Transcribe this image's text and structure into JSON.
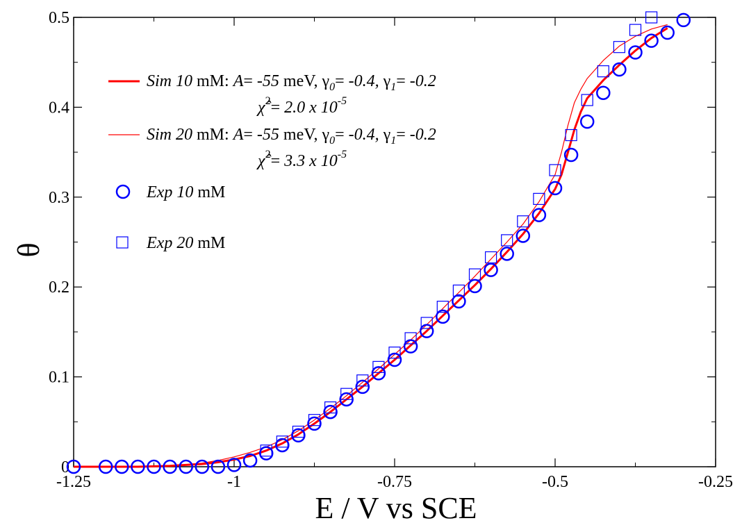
{
  "chart_data": {
    "type": "line",
    "xlabel": "E / V vs SCE",
    "ylabel": "θ",
    "xlim": [
      -1.25,
      -0.25
    ],
    "ylim": [
      0,
      0.5
    ],
    "grid": false,
    "legend_position": "top-left",
    "x_ticks": [
      {
        "value": -1.25,
        "label": "-1.25"
      },
      {
        "value": -1.0,
        "label": "-1"
      },
      {
        "value": -0.75,
        "label": "-0.75"
      },
      {
        "value": -0.5,
        "label": "-0.5"
      },
      {
        "value": -0.25,
        "label": "-0.25"
      }
    ],
    "y_ticks": [
      {
        "value": 0,
        "label": "0"
      },
      {
        "value": 0.1,
        "label": "0.1"
      },
      {
        "value": 0.2,
        "label": "0.2"
      },
      {
        "value": 0.3,
        "label": "0.3"
      },
      {
        "value": 0.4,
        "label": "0.4"
      },
      {
        "value": 0.5,
        "label": "0.5"
      }
    ],
    "series": [
      {
        "legend": {
          "conc": "10",
          "unit": "mM:",
          "chi": "2.0 x 10",
          "chi_exp": "-5"
        },
        "style": "line",
        "color": "#ff0000",
        "width": 3,
        "x": [
          -1.25,
          -1.15,
          -1.1,
          -1.05,
          -1.025,
          -1.0,
          -0.975,
          -0.95,
          -0.925,
          -0.9,
          -0.875,
          -0.85,
          -0.825,
          -0.8,
          -0.775,
          -0.75,
          -0.725,
          -0.7,
          -0.675,
          -0.65,
          -0.625,
          -0.6,
          -0.575,
          -0.55,
          -0.525,
          -0.5,
          -0.49,
          -0.48,
          -0.47,
          -0.46,
          -0.45,
          -0.425,
          -0.4,
          -0.375,
          -0.35,
          -0.325
        ],
        "y": [
          0,
          0,
          0.001,
          0.003,
          0.005,
          0.008,
          0.012,
          0.018,
          0.026,
          0.036,
          0.048,
          0.061,
          0.075,
          0.089,
          0.104,
          0.119,
          0.135,
          0.151,
          0.168,
          0.185,
          0.202,
          0.22,
          0.239,
          0.259,
          0.282,
          0.309,
          0.325,
          0.35,
          0.375,
          0.395,
          0.41,
          0.43,
          0.447,
          0.463,
          0.477,
          0.488
        ]
      },
      {
        "legend": {
          "conc": "20",
          "unit": "mM:",
          "chi": "3.3 x 10",
          "chi_exp": "-5"
        },
        "style": "line",
        "color": "#ff0000",
        "width": 1.2,
        "x": [
          -1.25,
          -1.15,
          -1.1,
          -1.05,
          -1.025,
          -1.0,
          -0.975,
          -0.95,
          -0.925,
          -0.9,
          -0.875,
          -0.85,
          -0.825,
          -0.8,
          -0.775,
          -0.75,
          -0.725,
          -0.7,
          -0.675,
          -0.65,
          -0.625,
          -0.6,
          -0.575,
          -0.55,
          -0.525,
          -0.5,
          -0.49,
          -0.48,
          -0.47,
          -0.46,
          -0.45,
          -0.425,
          -0.4,
          -0.375,
          -0.35,
          -0.325
        ],
        "y": [
          0,
          0,
          0.001,
          0.004,
          0.007,
          0.011,
          0.016,
          0.022,
          0.03,
          0.04,
          0.052,
          0.065,
          0.079,
          0.094,
          0.109,
          0.125,
          0.141,
          0.158,
          0.176,
          0.194,
          0.212,
          0.231,
          0.25,
          0.27,
          0.295,
          0.325,
          0.35,
          0.38,
          0.405,
          0.42,
          0.432,
          0.452,
          0.468,
          0.479,
          0.487,
          0.492
        ]
      },
      {
        "legend": {
          "conc": "10",
          "unit": "mM"
        },
        "style": "circle",
        "color": "#0000ff",
        "x": [
          -1.25,
          -1.2,
          -1.175,
          -1.15,
          -1.125,
          -1.1,
          -1.075,
          -1.05,
          -1.025,
          -1.0,
          -0.975,
          -0.95,
          -0.925,
          -0.9,
          -0.875,
          -0.85,
          -0.825,
          -0.8,
          -0.775,
          -0.75,
          -0.725,
          -0.7,
          -0.675,
          -0.65,
          -0.625,
          -0.6,
          -0.575,
          -0.55,
          -0.525,
          -0.5,
          -0.475,
          -0.45,
          -0.425,
          -0.4,
          -0.375,
          -0.35,
          -0.325,
          -0.3
        ],
        "y": [
          0,
          0,
          0,
          0,
          0,
          0,
          0,
          0,
          0,
          0.002,
          0.007,
          0.015,
          0.024,
          0.035,
          0.048,
          0.061,
          0.075,
          0.089,
          0.104,
          0.119,
          0.134,
          0.151,
          0.167,
          0.184,
          0.201,
          0.219,
          0.237,
          0.257,
          0.28,
          0.31,
          0.347,
          0.384,
          0.416,
          0.442,
          0.461,
          0.474,
          0.483,
          0.497
        ]
      },
      {
        "legend": {
          "conc": "20",
          "unit": "mM"
        },
        "style": "square",
        "color": "#0000ff",
        "x": [
          -0.95,
          -0.925,
          -0.9,
          -0.875,
          -0.85,
          -0.825,
          -0.8,
          -0.775,
          -0.75,
          -0.725,
          -0.7,
          -0.675,
          -0.65,
          -0.625,
          -0.6,
          -0.575,
          -0.55,
          -0.525,
          -0.5,
          -0.475,
          -0.45,
          -0.425,
          -0.4,
          -0.375,
          -0.35
        ],
        "y": [
          0.018,
          0.028,
          0.039,
          0.052,
          0.066,
          0.081,
          0.096,
          0.111,
          0.127,
          0.143,
          0.16,
          0.178,
          0.196,
          0.214,
          0.233,
          0.252,
          0.273,
          0.298,
          0.33,
          0.369,
          0.408,
          0.44,
          0.467,
          0.486,
          0.5
        ]
      }
    ],
    "sim_params": {
      "A": "A",
      "A_val": "-55",
      "A_unit": "meV,",
      "g0_val": "-0.4,",
      "g1_val": "-0.2"
    },
    "labels": {
      "sim": "Sim",
      "exp": "Exp",
      "eq": "=",
      "sub0": "0",
      "sub1": "1"
    }
  }
}
